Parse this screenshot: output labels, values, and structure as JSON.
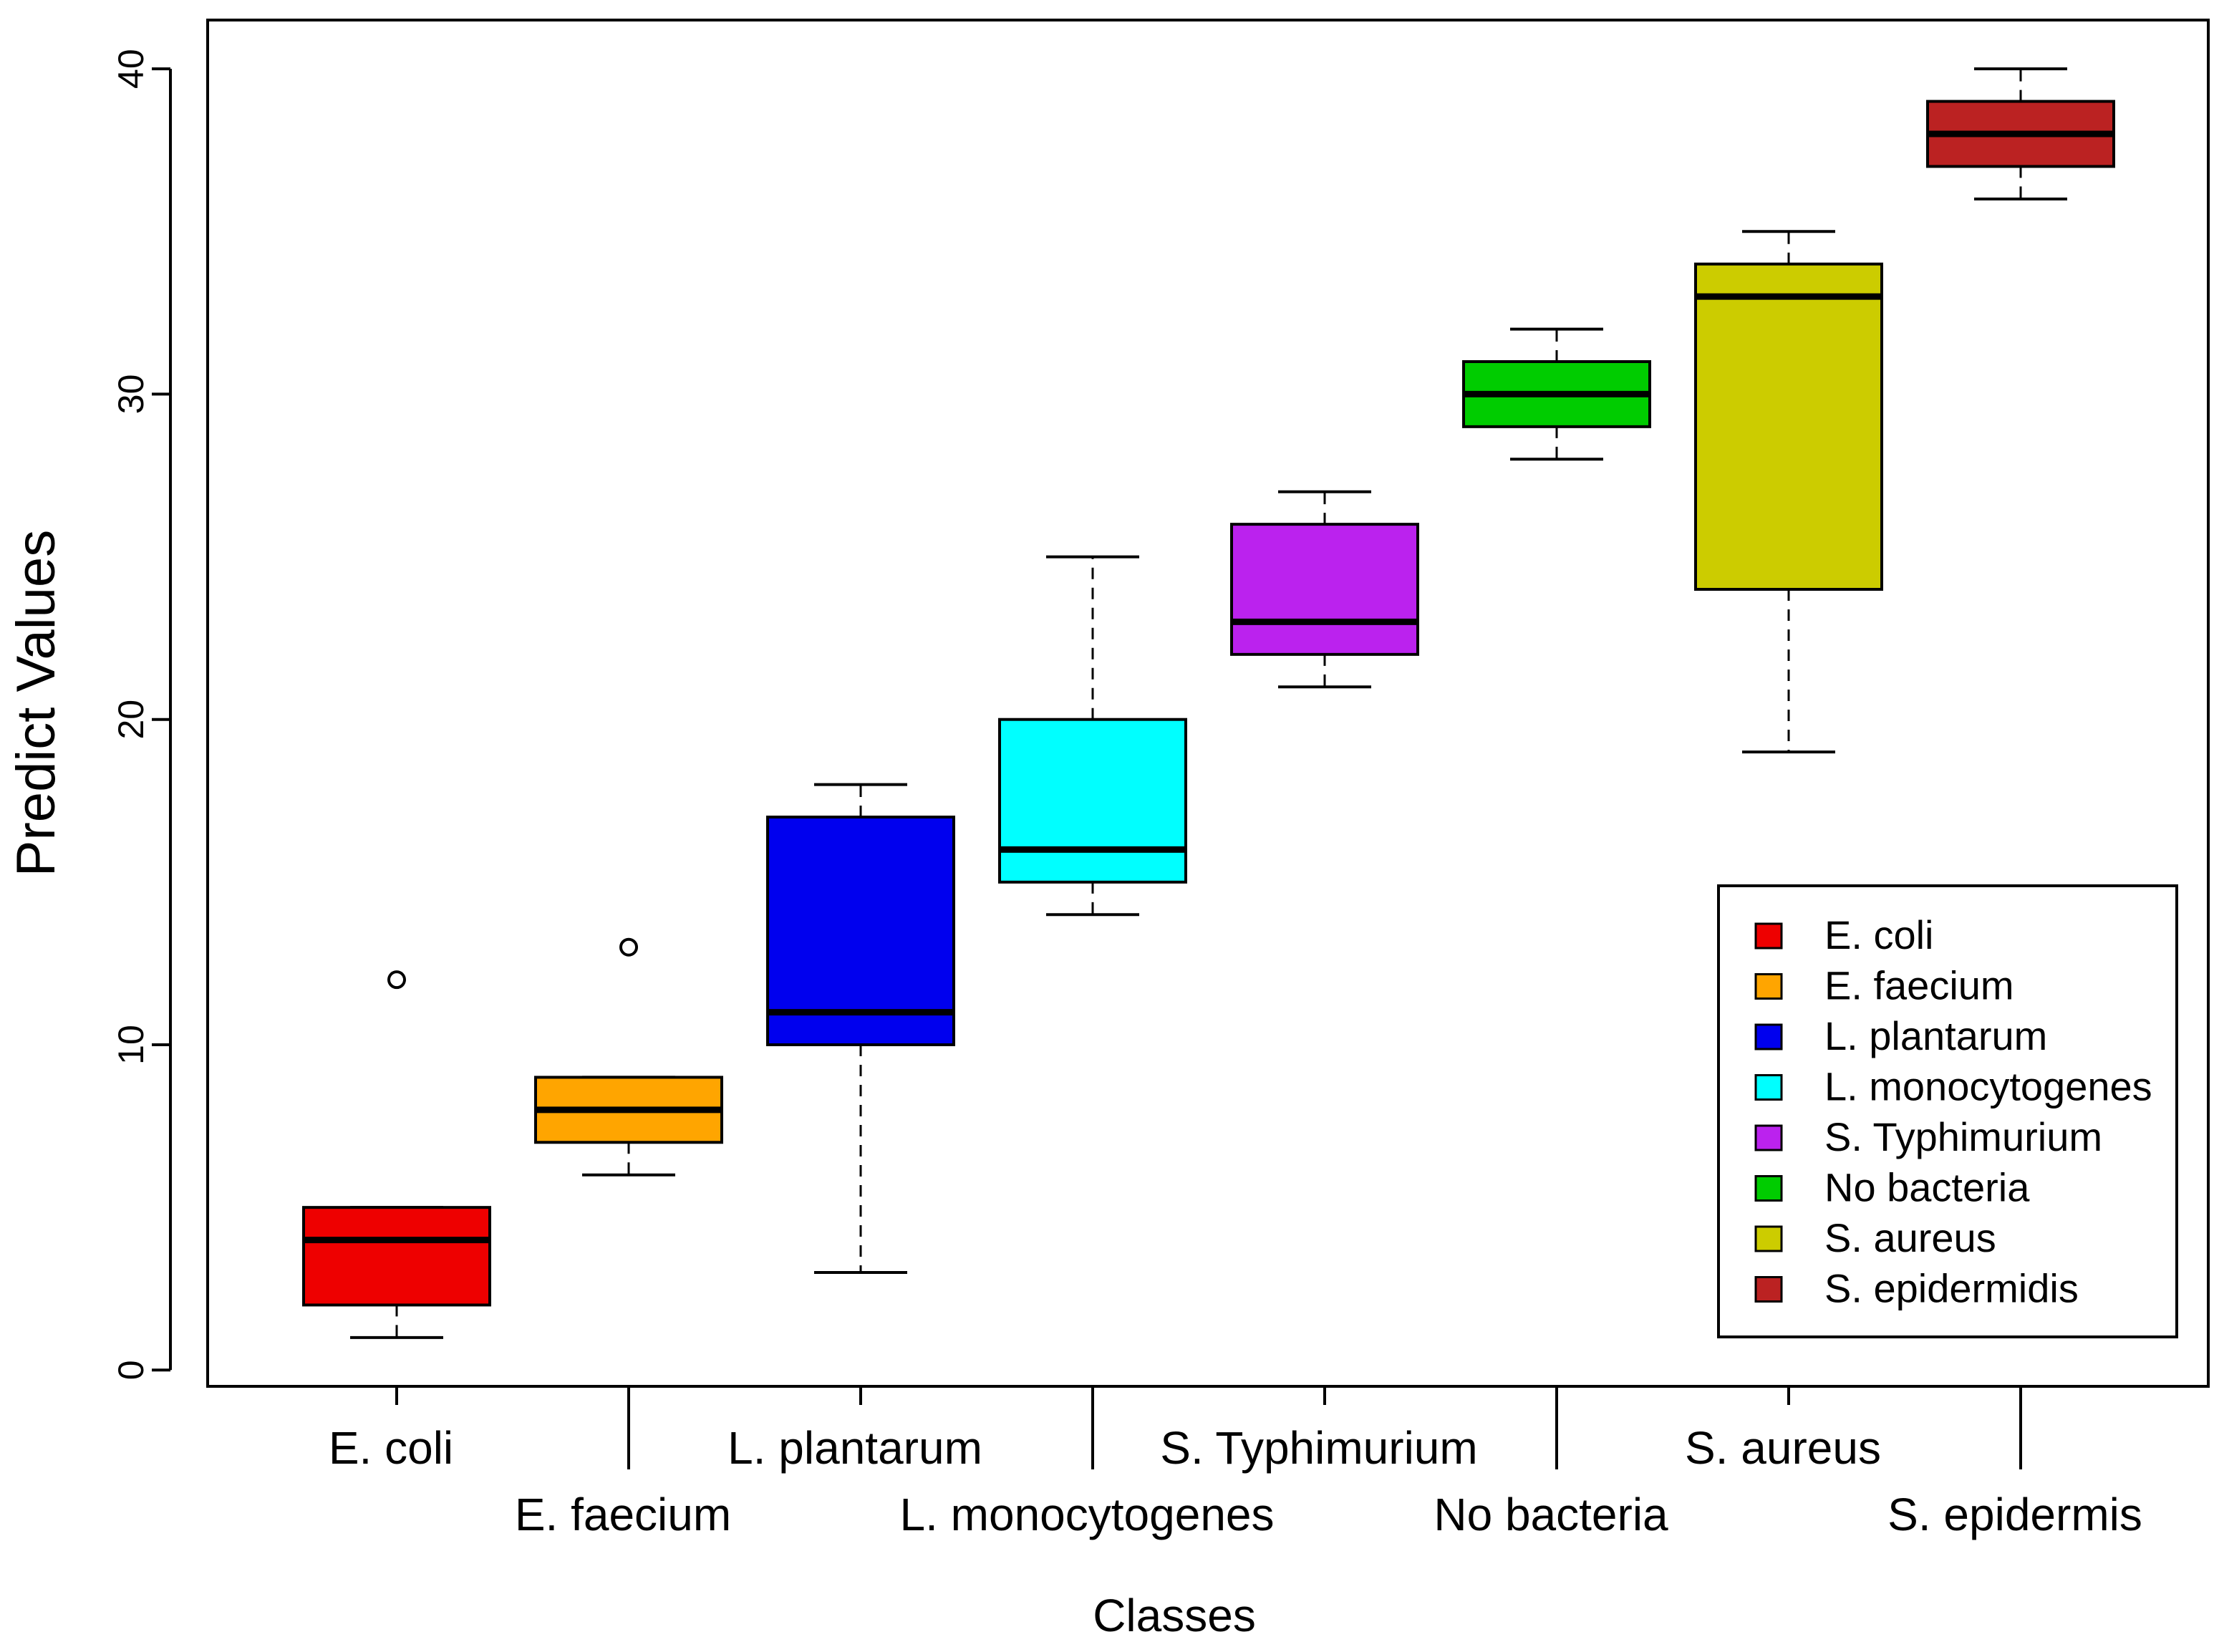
{
  "chart_data": {
    "type": "boxplot",
    "xlabel": "Classes",
    "ylabel": "Predict Values",
    "ylim": [
      -0.5,
      41.5
    ],
    "yticks": [
      0,
      10,
      20,
      30,
      40
    ],
    "grid": false,
    "legend_position": "bottom-right",
    "categories": [
      "E. coli",
      "E. faecium",
      "L. plantarum",
      "L. monocytogenes",
      "S. Typhimurium",
      "No bacteria",
      "S. aureus",
      "S. epidermis"
    ],
    "series": [
      {
        "category": "E. coli",
        "min": 1,
        "q1": 2,
        "median": 4,
        "q3": 5,
        "max": 5,
        "outliers": [
          12
        ],
        "color": "#ee0000"
      },
      {
        "category": "E. faecium",
        "min": 6,
        "q1": 7,
        "median": 8,
        "q3": 9,
        "max": 9,
        "outliers": [
          13
        ],
        "color": "#ffa500"
      },
      {
        "category": "L. plantarum",
        "min": 3,
        "q1": 10,
        "median": 11,
        "q3": 17,
        "max": 18,
        "outliers": [],
        "color": "#0000ee"
      },
      {
        "category": "L. monocytogenes",
        "min": 14,
        "q1": 15,
        "median": 16,
        "q3": 20,
        "max": 25,
        "outliers": [],
        "color": "#00ffff"
      },
      {
        "category": "S. Typhimurium",
        "min": 21,
        "q1": 22,
        "median": 23,
        "q3": 26,
        "max": 27,
        "outliers": [],
        "color": "#bb22ee"
      },
      {
        "category": "No bacteria",
        "min": 28,
        "q1": 29,
        "median": 30,
        "q3": 31,
        "max": 32,
        "outliers": [],
        "color": "#00cc00"
      },
      {
        "category": "S. aureus",
        "min": 19,
        "q1": 24,
        "median": 33,
        "q3": 34,
        "max": 35,
        "outliers": [],
        "color": "#cccc00"
      },
      {
        "category": "S. epidermis",
        "min": 36,
        "q1": 37,
        "median": 38,
        "q3": 39,
        "max": 40,
        "outliers": [],
        "color": "#bb2222"
      }
    ],
    "legend": [
      {
        "label": "E. coli",
        "color": "#ee0000"
      },
      {
        "label": "E. faecium",
        "color": "#ffa500"
      },
      {
        "label": "L. plantarum",
        "color": "#0000ee"
      },
      {
        "label": "L. monocytogenes",
        "color": "#00ffff"
      },
      {
        "label": "S. Typhimurium",
        "color": "#bb22ee"
      },
      {
        "label": "No bacteria",
        "color": "#00cc00"
      },
      {
        "label": "S. aureus",
        "color": "#cccc00"
      },
      {
        "label": "S. epidermidis",
        "color": "#bb2222"
      }
    ]
  }
}
